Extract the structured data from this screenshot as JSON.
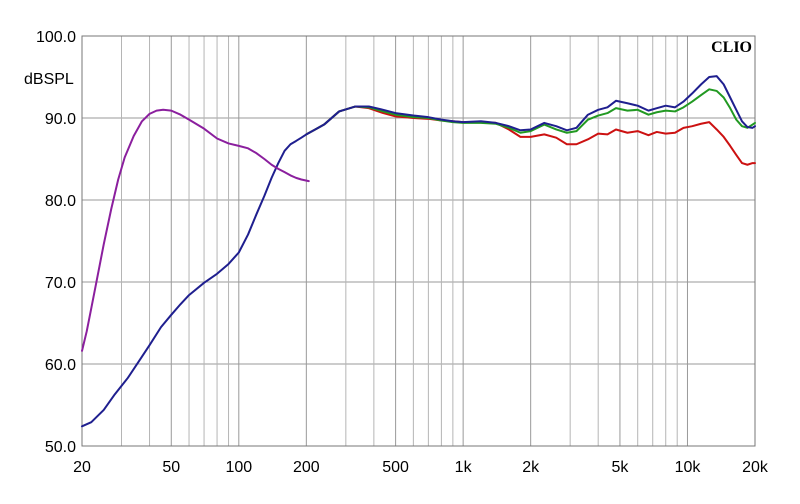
{
  "chart_data": {
    "type": "line",
    "title": "",
    "ylabel": "dBSPL",
    "xlabel": "",
    "brand": "CLIO",
    "x_scale": "log",
    "xlim": [
      20,
      20000
    ],
    "ylim": [
      50,
      100
    ],
    "grid": true,
    "x_major_ticks": [
      {
        "value": 20,
        "label": "20"
      },
      {
        "value": 50,
        "label": "50"
      },
      {
        "value": 100,
        "label": "100"
      },
      {
        "value": 200,
        "label": "200"
      },
      {
        "value": 500,
        "label": "500"
      },
      {
        "value": 1000,
        "label": "1k"
      },
      {
        "value": 2000,
        "label": "2k"
      },
      {
        "value": 5000,
        "label": "5k"
      },
      {
        "value": 10000,
        "label": "10k"
      },
      {
        "value": 20000,
        "label": "20k"
      }
    ],
    "x_minor_ticks": [
      30,
      40,
      60,
      70,
      80,
      90,
      300,
      400,
      600,
      700,
      800,
      900,
      3000,
      4000,
      6000,
      7000,
      8000,
      9000
    ],
    "y_ticks": [
      {
        "value": 50,
        "label": "50.0"
      },
      {
        "value": 60,
        "label": "60.0"
      },
      {
        "value": 70,
        "label": "70.0"
      },
      {
        "value": 80,
        "label": "80.0"
      },
      {
        "value": 90,
        "label": "90.0"
      },
      {
        "value": 100,
        "label": "100.0"
      }
    ],
    "series": [
      {
        "color": "#cc1111",
        "points": [
          [
            200,
            88
          ],
          [
            240,
            89.2
          ],
          [
            280,
            90.8
          ],
          [
            330,
            91.4
          ],
          [
            380,
            91.2
          ],
          [
            440,
            90.6
          ],
          [
            500,
            90.2
          ],
          [
            600,
            90
          ],
          [
            700,
            89.9
          ],
          [
            800,
            89.7
          ],
          [
            900,
            89.6
          ],
          [
            1000,
            89.5
          ],
          [
            1200,
            89.5
          ],
          [
            1400,
            89.4
          ],
          [
            1600,
            88.6
          ],
          [
            1800,
            87.7
          ],
          [
            2000,
            87.7
          ],
          [
            2300,
            88
          ],
          [
            2600,
            87.6
          ],
          [
            2900,
            86.8
          ],
          [
            3200,
            86.8
          ],
          [
            3600,
            87.4
          ],
          [
            4000,
            88.1
          ],
          [
            4400,
            88.0
          ],
          [
            4800,
            88.6
          ],
          [
            5400,
            88.2
          ],
          [
            6000,
            88.4
          ],
          [
            6700,
            87.9
          ],
          [
            7300,
            88.3
          ],
          [
            8000,
            88.1
          ],
          [
            8800,
            88.2
          ],
          [
            9600,
            88.8
          ],
          [
            10500,
            89.0
          ],
          [
            11500,
            89.3
          ],
          [
            12500,
            89.5
          ],
          [
            13500,
            88.6
          ],
          [
            14500,
            87.7
          ],
          [
            15500,
            86.6
          ],
          [
            16500,
            85.5
          ],
          [
            17500,
            84.5
          ],
          [
            18500,
            84.3
          ],
          [
            19500,
            84.5
          ],
          [
            20000,
            84.5
          ]
        ]
      },
      {
        "color": "#229922",
        "points": [
          [
            200,
            88
          ],
          [
            240,
            89.2
          ],
          [
            280,
            90.8
          ],
          [
            330,
            91.4
          ],
          [
            380,
            91.3
          ],
          [
            440,
            90.8
          ],
          [
            500,
            90.4
          ],
          [
            600,
            90.1
          ],
          [
            700,
            90
          ],
          [
            800,
            89.7
          ],
          [
            900,
            89.5
          ],
          [
            1000,
            89.4
          ],
          [
            1200,
            89.4
          ],
          [
            1400,
            89.3
          ],
          [
            1600,
            88.8
          ],
          [
            1800,
            88.2
          ],
          [
            2000,
            88.4
          ],
          [
            2300,
            89.2
          ],
          [
            2600,
            88.6
          ],
          [
            2900,
            88.2
          ],
          [
            3200,
            88.4
          ],
          [
            3600,
            89.8
          ],
          [
            4000,
            90.3
          ],
          [
            4400,
            90.6
          ],
          [
            4800,
            91.2
          ],
          [
            5400,
            90.9
          ],
          [
            6000,
            91.0
          ],
          [
            6700,
            90.4
          ],
          [
            7300,
            90.7
          ],
          [
            8000,
            90.9
          ],
          [
            8800,
            90.8
          ],
          [
            9600,
            91.3
          ],
          [
            10500,
            92.0
          ],
          [
            11500,
            92.8
          ],
          [
            12500,
            93.5
          ],
          [
            13500,
            93.3
          ],
          [
            14500,
            92.5
          ],
          [
            15500,
            91.2
          ],
          [
            16500,
            89.8
          ],
          [
            17500,
            89.0
          ],
          [
            18500,
            88.8
          ],
          [
            19500,
            89.2
          ],
          [
            20000,
            89.4
          ]
        ]
      },
      {
        "color": "#1f1f8f",
        "points": [
          [
            20,
            52.4
          ],
          [
            22,
            52.9
          ],
          [
            25,
            54.4
          ],
          [
            28,
            56.3
          ],
          [
            32,
            58.3
          ],
          [
            36,
            60.4
          ],
          [
            40,
            62.3
          ],
          [
            45,
            64.5
          ],
          [
            50,
            66
          ],
          [
            55,
            67.3
          ],
          [
            60,
            68.4
          ],
          [
            70,
            69.9
          ],
          [
            80,
            71
          ],
          [
            90,
            72.2
          ],
          [
            100,
            73.6
          ],
          [
            110,
            75.8
          ],
          [
            120,
            78.3
          ],
          [
            130,
            80.5
          ],
          [
            140,
            82.7
          ],
          [
            150,
            84.5
          ],
          [
            160,
            86.0
          ],
          [
            170,
            86.8
          ],
          [
            180,
            87.2
          ],
          [
            190,
            87.6
          ],
          [
            200,
            88
          ],
          [
            240,
            89.2
          ],
          [
            280,
            90.8
          ],
          [
            330,
            91.4
          ],
          [
            380,
            91.4
          ],
          [
            440,
            91
          ],
          [
            500,
            90.6
          ],
          [
            600,
            90.3
          ],
          [
            700,
            90.1
          ],
          [
            800,
            89.8
          ],
          [
            900,
            89.6
          ],
          [
            1000,
            89.5
          ],
          [
            1200,
            89.6
          ],
          [
            1400,
            89.4
          ],
          [
            1600,
            89
          ],
          [
            1800,
            88.5
          ],
          [
            2000,
            88.6
          ],
          [
            2300,
            89.4
          ],
          [
            2600,
            89
          ],
          [
            2900,
            88.5
          ],
          [
            3200,
            88.8
          ],
          [
            3600,
            90.4
          ],
          [
            4000,
            91
          ],
          [
            4400,
            91.3
          ],
          [
            4800,
            92.1
          ],
          [
            5400,
            91.8
          ],
          [
            6000,
            91.5
          ],
          [
            6700,
            90.9
          ],
          [
            7300,
            91.2
          ],
          [
            8000,
            91.5
          ],
          [
            8800,
            91.3
          ],
          [
            9600,
            92.0
          ],
          [
            10500,
            93.0
          ],
          [
            11500,
            94.1
          ],
          [
            12500,
            95.0
          ],
          [
            13500,
            95.1
          ],
          [
            14500,
            94.1
          ],
          [
            15500,
            92.5
          ],
          [
            16500,
            91.0
          ],
          [
            17500,
            89.6
          ],
          [
            18500,
            88.9
          ],
          [
            19500,
            88.8
          ],
          [
            20000,
            89.0
          ]
        ]
      },
      {
        "color": "#8b1f9e",
        "points": [
          [
            20,
            61.6
          ],
          [
            21,
            64
          ],
          [
            22,
            66.8
          ],
          [
            23,
            69.5
          ],
          [
            24,
            72.1
          ],
          [
            25,
            74.6
          ],
          [
            27,
            78.9
          ],
          [
            29,
            82.5
          ],
          [
            31,
            85.2
          ],
          [
            34,
            87.8
          ],
          [
            37,
            89.6
          ],
          [
            40,
            90.5
          ],
          [
            43,
            90.9
          ],
          [
            46,
            91
          ],
          [
            50,
            90.9
          ],
          [
            55,
            90.4
          ],
          [
            60,
            89.8
          ],
          [
            70,
            88.7
          ],
          [
            80,
            87.5
          ],
          [
            90,
            86.9
          ],
          [
            100,
            86.6
          ],
          [
            110,
            86.3
          ],
          [
            120,
            85.7
          ],
          [
            130,
            85
          ],
          [
            140,
            84.3
          ],
          [
            150,
            83.8
          ],
          [
            160,
            83.4
          ],
          [
            170,
            83
          ],
          [
            180,
            82.7
          ],
          [
            190,
            82.5
          ],
          [
            205,
            82.3
          ]
        ]
      }
    ]
  }
}
